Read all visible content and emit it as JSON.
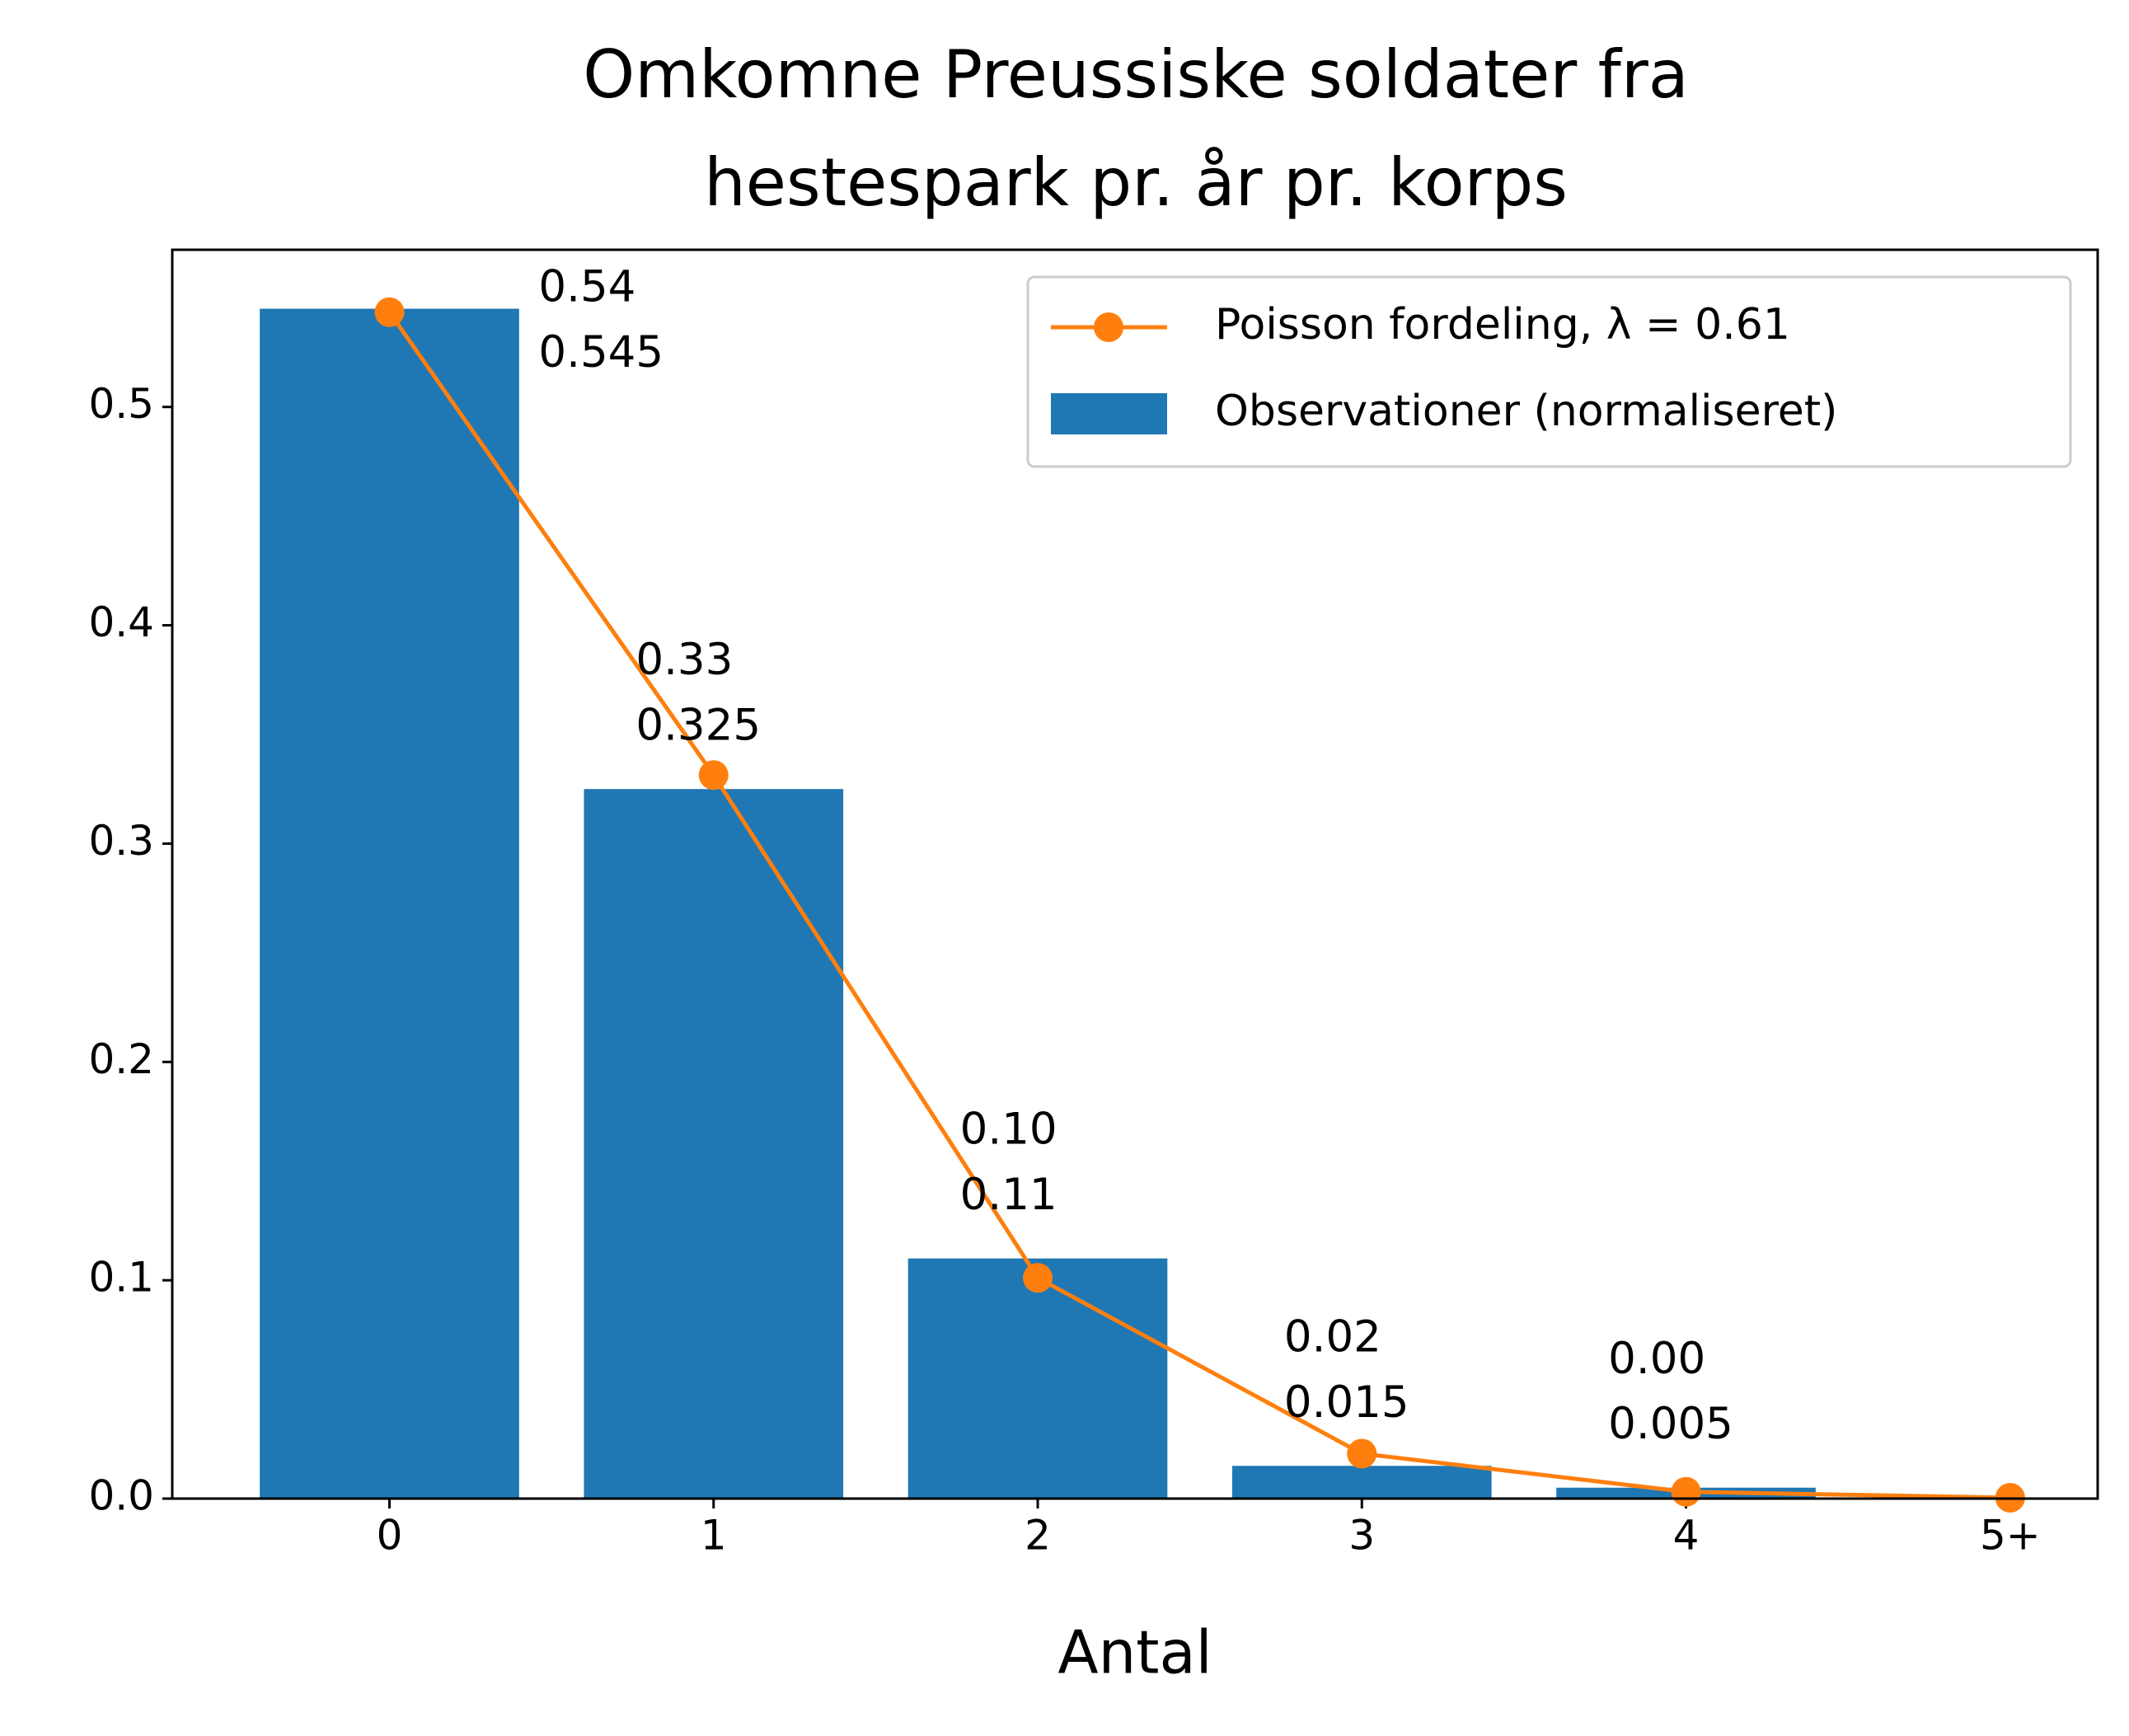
{
  "chart_data": {
    "type": "bar",
    "title": "Omkomne Preussiske soldater fra\nhestespark pr. år pr. korps",
    "x_label": "Antal",
    "categories": [
      "0",
      "1",
      "2",
      "3",
      "4",
      "5+"
    ],
    "series": [
      {
        "name": "Poisson fordeling, λ = 0.61",
        "type": "line",
        "color": "#ff7f0e",
        "values": [
          0.5434,
          0.3314,
          0.1011,
          0.0206,
          0.0031,
          0.0004
        ],
        "value_labels": [
          "0.54",
          "0.33",
          "0.10",
          "0.02",
          "0.00",
          null
        ]
      },
      {
        "name": "Observationer (normaliseret)",
        "type": "bar",
        "color": "#1f77b4",
        "values": [
          0.545,
          0.325,
          0.11,
          0.015,
          0.005,
          null
        ]
      }
    ],
    "ylim": [
      0,
      0.572
    ],
    "yticks": [
      {
        "value": 0,
        "label": "0.0"
      },
      0.1,
      0.2,
      0.3,
      0.4,
      0.5
    ],
    "legend": "upper right"
  }
}
